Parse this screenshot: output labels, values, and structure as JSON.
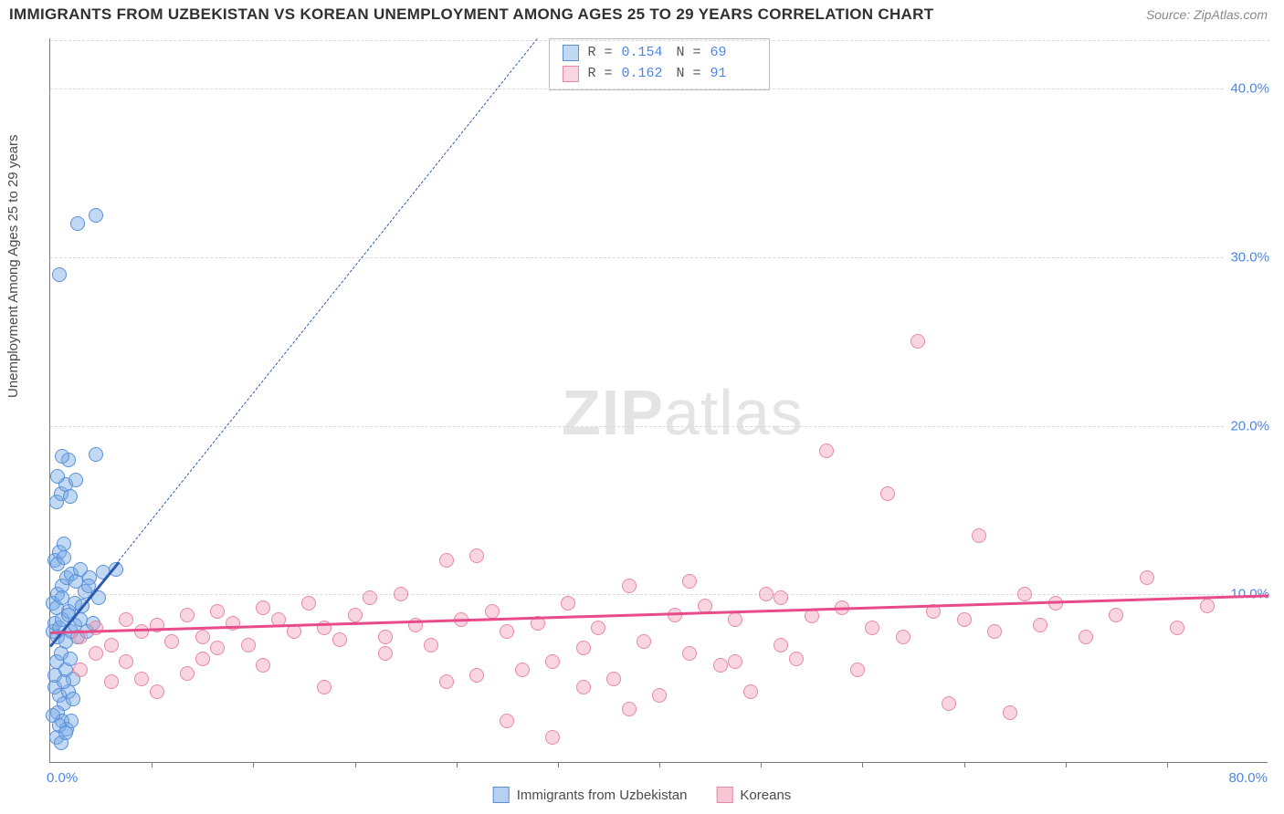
{
  "title": "IMMIGRANTS FROM UZBEKISTAN VS KOREAN UNEMPLOYMENT AMONG AGES 25 TO 29 YEARS CORRELATION CHART",
  "source": "Source: ZipAtlas.com",
  "ylabel": "Unemployment Among Ages 25 to 29 years",
  "watermark_a": "ZIP",
  "watermark_b": "atlas",
  "chart": {
    "type": "scatter",
    "xlim": [
      0,
      80
    ],
    "ylim": [
      0,
      43
    ],
    "xticks": [
      {
        "v": 0,
        "label": "0.0%"
      },
      {
        "v": 80,
        "label": "80.0%"
      }
    ],
    "yticks": [
      {
        "v": 10,
        "label": "10.0%"
      },
      {
        "v": 20,
        "label": "20.0%"
      },
      {
        "v": 30,
        "label": "30.0%"
      },
      {
        "v": 40,
        "label": "40.0%"
      }
    ],
    "x_minor_ticks": [
      6.67,
      13.33,
      20,
      26.67,
      33.33,
      40,
      46.67,
      53.33,
      60,
      66.67,
      73.33
    ],
    "grid_color": "#d9d9d9",
    "axis_color": "#7a7a7a",
    "background_color": "#ffffff",
    "tick_label_color": "#4a86e8",
    "tick_fontsize": 15,
    "title_fontsize": 17,
    "label_fontsize": 15,
    "marker_radius": 8,
    "series": [
      {
        "name": "Immigrants from Uzbekistan",
        "color_fill": "rgba(120,170,230,0.45)",
        "color_stroke": "#5a8fd8",
        "R": "0.154",
        "N": "69",
        "trend": {
          "x1": 0,
          "y1": 7.0,
          "x2": 4.5,
          "y2": 12.0,
          "color": "#2b5bb0",
          "width": 2.5,
          "dash_to_x": 32,
          "dash_to_y": 43
        },
        "points": [
          [
            0.2,
            7.8
          ],
          [
            0.3,
            8.3
          ],
          [
            0.5,
            7.5
          ],
          [
            0.6,
            8.0
          ],
          [
            0.8,
            8.5
          ],
          [
            1.0,
            7.2
          ],
          [
            1.2,
            9.0
          ],
          [
            1.4,
            7.8
          ],
          [
            1.6,
            8.2
          ],
          [
            1.8,
            7.5
          ],
          [
            0.4,
            6.0
          ],
          [
            0.7,
            6.5
          ],
          [
            1.0,
            5.5
          ],
          [
            1.3,
            6.2
          ],
          [
            1.5,
            5.0
          ],
          [
            0.3,
            4.5
          ],
          [
            0.6,
            4.0
          ],
          [
            0.9,
            3.5
          ],
          [
            1.2,
            4.2
          ],
          [
            0.5,
            3.0
          ],
          [
            0.8,
            2.5
          ],
          [
            1.1,
            2.0
          ],
          [
            0.4,
            1.5
          ],
          [
            0.7,
            1.2
          ],
          [
            0.2,
            9.5
          ],
          [
            0.5,
            10.0
          ],
          [
            0.8,
            10.5
          ],
          [
            1.1,
            11.0
          ],
          [
            1.4,
            11.2
          ],
          [
            1.7,
            10.8
          ],
          [
            2.0,
            11.5
          ],
          [
            2.3,
            10.2
          ],
          [
            2.6,
            11.0
          ],
          [
            3.5,
            11.3
          ],
          [
            4.3,
            11.5
          ],
          [
            0.3,
            12.0
          ],
          [
            0.6,
            12.5
          ],
          [
            0.9,
            13.0
          ],
          [
            0.4,
            15.5
          ],
          [
            0.7,
            16.0
          ],
          [
            1.0,
            16.5
          ],
          [
            0.5,
            17.0
          ],
          [
            1.2,
            18.0
          ],
          [
            0.8,
            18.2
          ],
          [
            3.0,
            18.3
          ],
          [
            0.6,
            29.0
          ],
          [
            1.8,
            32.0
          ],
          [
            3.0,
            32.5
          ],
          [
            0.3,
            5.2
          ],
          [
            0.9,
            4.8
          ],
          [
            1.5,
            3.8
          ],
          [
            0.2,
            2.8
          ],
          [
            0.6,
            2.2
          ],
          [
            1.0,
            1.8
          ],
          [
            1.4,
            2.5
          ],
          [
            0.4,
            9.2
          ],
          [
            0.8,
            9.8
          ],
          [
            1.2,
            8.8
          ],
          [
            1.6,
            9.5
          ],
          [
            2.0,
            8.5
          ],
          [
            2.4,
            7.8
          ],
          [
            2.8,
            8.3
          ],
          [
            0.5,
            11.8
          ],
          [
            0.9,
            12.2
          ],
          [
            1.3,
            15.8
          ],
          [
            1.7,
            16.8
          ],
          [
            2.1,
            9.3
          ],
          [
            2.5,
            10.5
          ],
          [
            3.2,
            9.8
          ]
        ]
      },
      {
        "name": "Koreans",
        "color_fill": "rgba(240,150,175,0.40)",
        "color_stroke": "#e888a8",
        "R": "0.162",
        "N": "91",
        "trend": {
          "x1": 0,
          "y1": 7.8,
          "x2": 80,
          "y2": 10.0,
          "color": "#e84b8a",
          "width": 2.5
        },
        "points": [
          [
            2,
            7.5
          ],
          [
            3,
            8.0
          ],
          [
            4,
            7.0
          ],
          [
            5,
            8.5
          ],
          [
            6,
            7.8
          ],
          [
            7,
            8.2
          ],
          [
            8,
            7.2
          ],
          [
            9,
            8.8
          ],
          [
            10,
            7.5
          ],
          [
            11,
            9.0
          ],
          [
            12,
            8.3
          ],
          [
            13,
            7.0
          ],
          [
            14,
            9.2
          ],
          [
            15,
            8.5
          ],
          [
            16,
            7.8
          ],
          [
            17,
            9.5
          ],
          [
            18,
            8.0
          ],
          [
            19,
            7.3
          ],
          [
            20,
            8.8
          ],
          [
            21,
            9.8
          ],
          [
            22,
            7.5
          ],
          [
            23,
            10.0
          ],
          [
            24,
            8.2
          ],
          [
            25,
            7.0
          ],
          [
            26,
            12.0
          ],
          [
            27,
            8.5
          ],
          [
            28,
            12.3
          ],
          [
            29,
            9.0
          ],
          [
            30,
            7.8
          ],
          [
            31,
            5.5
          ],
          [
            32,
            8.3
          ],
          [
            33,
            6.0
          ],
          [
            34,
            9.5
          ],
          [
            35,
            4.5
          ],
          [
            36,
            8.0
          ],
          [
            37,
            5.0
          ],
          [
            38,
            10.5
          ],
          [
            39,
            7.2
          ],
          [
            40,
            4.0
          ],
          [
            41,
            8.8
          ],
          [
            42,
            6.5
          ],
          [
            43,
            9.3
          ],
          [
            44,
            5.8
          ],
          [
            45,
            8.5
          ],
          [
            46,
            4.2
          ],
          [
            47,
            10.0
          ],
          [
            48,
            7.0
          ],
          [
            49,
            6.2
          ],
          [
            50,
            8.7
          ],
          [
            51,
            18.5
          ],
          [
            52,
            9.2
          ],
          [
            53,
            5.5
          ],
          [
            54,
            8.0
          ],
          [
            55,
            16.0
          ],
          [
            56,
            7.5
          ],
          [
            57,
            25.0
          ],
          [
            58,
            9.0
          ],
          [
            59,
            3.5
          ],
          [
            60,
            8.5
          ],
          [
            61,
            13.5
          ],
          [
            62,
            7.8
          ],
          [
            63,
            3.0
          ],
          [
            64,
            10.0
          ],
          [
            65,
            8.2
          ],
          [
            66,
            9.5
          ],
          [
            68,
            7.5
          ],
          [
            70,
            8.8
          ],
          [
            72,
            11.0
          ],
          [
            74,
            8.0
          ],
          [
            76,
            9.3
          ],
          [
            33,
            1.5
          ],
          [
            26,
            4.8
          ],
          [
            28,
            5.2
          ],
          [
            30,
            2.5
          ],
          [
            35,
            6.8
          ],
          [
            38,
            3.2
          ],
          [
            42,
            10.8
          ],
          [
            45,
            6.0
          ],
          [
            48,
            9.8
          ],
          [
            22,
            6.5
          ],
          [
            18,
            4.5
          ],
          [
            14,
            5.8
          ],
          [
            10,
            6.2
          ],
          [
            6,
            5.0
          ],
          [
            3,
            6.5
          ],
          [
            2,
            5.5
          ],
          [
            4,
            4.8
          ],
          [
            5,
            6.0
          ],
          [
            7,
            4.2
          ],
          [
            9,
            5.3
          ],
          [
            11,
            6.8
          ]
        ]
      }
    ]
  },
  "legend_bottom": [
    {
      "label": "Immigrants from Uzbekistan",
      "fill": "rgba(120,170,230,0.55)",
      "stroke": "#5a8fd8"
    },
    {
      "label": "Koreans",
      "fill": "rgba(240,150,175,0.55)",
      "stroke": "#e888a8"
    }
  ]
}
